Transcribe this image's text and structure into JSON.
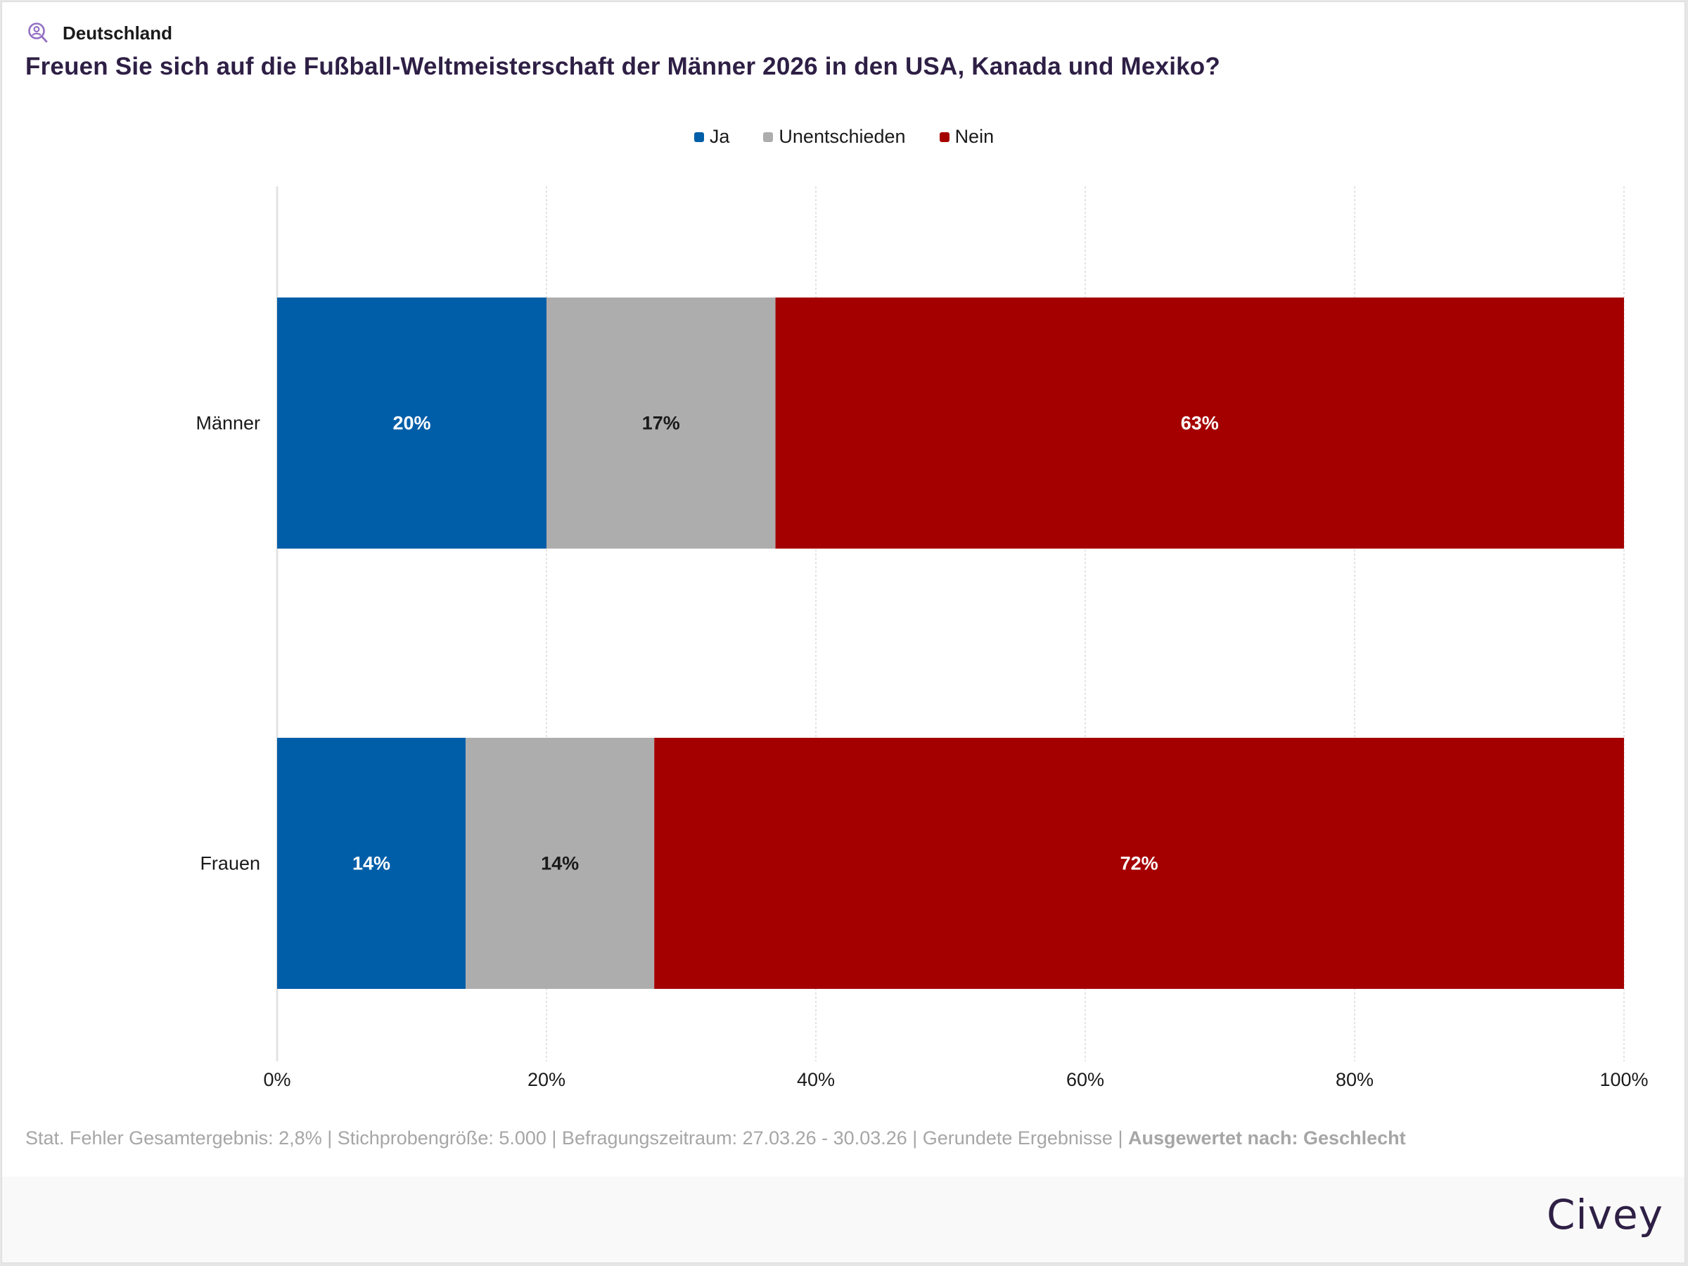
{
  "header": {
    "region_icon": "person-search-icon",
    "region": "Deutschland",
    "title": "Freuen Sie sich auf die Fußball-Weltmeisterschaft der Männer 2026 in den USA, Kanada und Mexiko?"
  },
  "legend": [
    {
      "label": "Ja",
      "color": "#005ea8"
    },
    {
      "label": "Unentschieden",
      "color": "#adadad"
    },
    {
      "label": "Nein",
      "color": "#a50000"
    }
  ],
  "chart_data": {
    "type": "bar",
    "orientation": "horizontal",
    "stacked": true,
    "title": "Freuen Sie sich auf die Fußball-Weltmeisterschaft der Männer 2026 in den USA, Kanada und Mexiko?",
    "categories": [
      "Männer",
      "Frauen"
    ],
    "series": [
      {
        "name": "Ja",
        "color": "#005ea8",
        "label_color": "#ffffff",
        "values": [
          20,
          14
        ]
      },
      {
        "name": "Unentschieden",
        "color": "#adadad",
        "label_color": "#1a1a1a",
        "values": [
          17,
          14
        ]
      },
      {
        "name": "Nein",
        "color": "#a50000",
        "label_color": "#ffffff",
        "values": [
          63,
          72
        ]
      }
    ],
    "xlabel": "",
    "ylabel": "",
    "xlim": [
      0,
      100
    ],
    "x_ticks": [
      "0%",
      "20%",
      "40%",
      "60%",
      "80%",
      "100%"
    ],
    "value_suffix": "%",
    "grid": true,
    "legend_position": "top-center"
  },
  "footnote": {
    "text": "Stat. Fehler Gesamtergebnis: 2,8% | Stichprobengröße: 5.000 | Befragungszeitraum: 27.03.26 - 30.03.26 | Gerundete Ergebnisse | ",
    "bold": "Ausgewertet nach: Geschlecht"
  },
  "brand": {
    "logo": "Civey"
  }
}
